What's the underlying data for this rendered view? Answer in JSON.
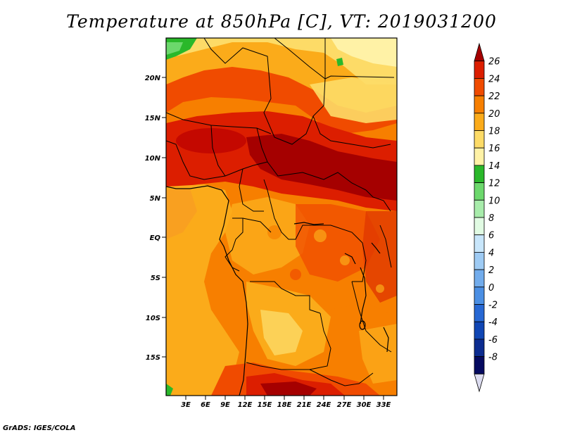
{
  "title": "Temperature at 850hPa [C], VT: 2019031200",
  "credit": "GrADS: IGES/COLA",
  "map": {
    "lat_labels": [
      "20N",
      "15N",
      "10N",
      "5N",
      "EQ",
      "5S",
      "10S",
      "15S"
    ],
    "lon_labels": [
      "3E",
      "6E",
      "9E",
      "12E",
      "15E",
      "18E",
      "21E",
      "24E",
      "27E",
      "30E",
      "33E"
    ]
  },
  "colorbar": {
    "labels": [
      "26",
      "24",
      "22",
      "20",
      "18",
      "16",
      "14",
      "12",
      "10",
      "8",
      "6",
      "4",
      "2",
      "0",
      "-2",
      "-4",
      "-6",
      "-8"
    ],
    "colors": [
      "#a50000",
      "#dc1e00",
      "#f04b00",
      "#f77f00",
      "#fbab1a",
      "#fddb67",
      "#fff2a6",
      "#2ab82a",
      "#6cd86c",
      "#a8ecab",
      "#e1fbe3",
      "#c8e6fb",
      "#9ecbf4",
      "#72acec",
      "#4b8fe4",
      "#2768d4",
      "#1046b4",
      "#0c2c90",
      "#050a60",
      "#dcdcf0"
    ]
  }
}
